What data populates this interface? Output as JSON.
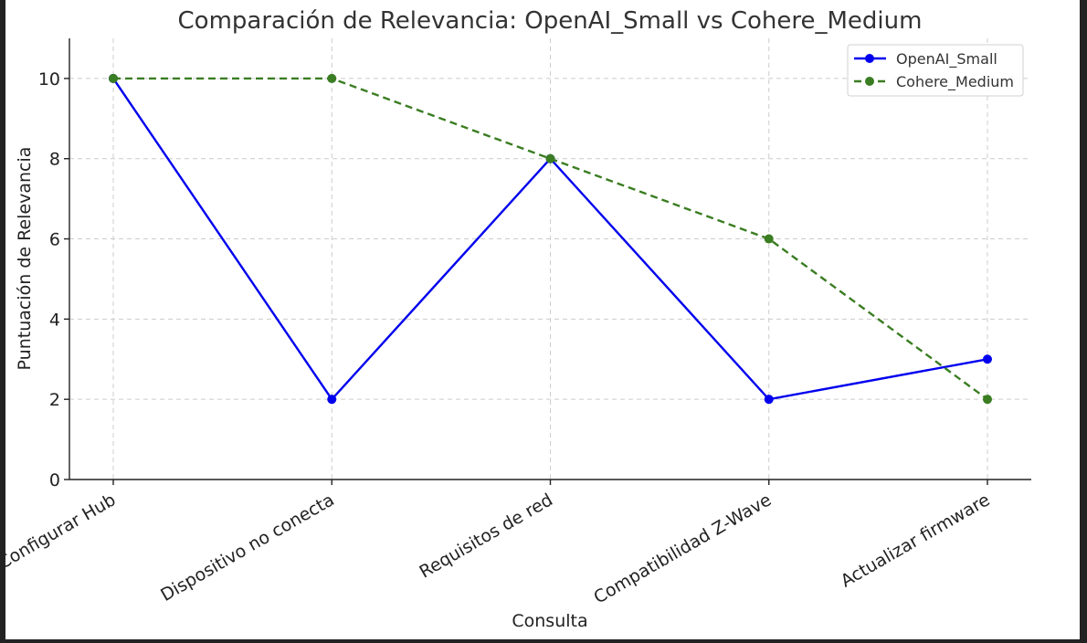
{
  "chart_data": {
    "type": "line",
    "title": "Comparación de Relevancia: OpenAI_Small vs Cohere_Medium",
    "xlabel": "Consulta",
    "ylabel": "Puntuación de Relevancia",
    "categories": [
      "Configurar Hub",
      "Dispositivo no conecta",
      "Requisitos de red",
      "Compatibilidad Z-Wave",
      "Actualizar firmware"
    ],
    "y_ticks": [
      "0",
      "2",
      "4",
      "6",
      "8",
      "10"
    ],
    "ylim": [
      0,
      11
    ],
    "grid": true,
    "legend_position": "top-right",
    "series": [
      {
        "name": "OpenAI_Small",
        "values": [
          10,
          2,
          8,
          2,
          3
        ],
        "color": "#0000ee",
        "style": "solid",
        "marker": "circle"
      },
      {
        "name": "Cohere_Medium",
        "values": [
          10,
          10,
          8,
          6,
          2
        ],
        "color": "#3a7d22",
        "style": "dashed",
        "marker": "circle"
      }
    ]
  }
}
